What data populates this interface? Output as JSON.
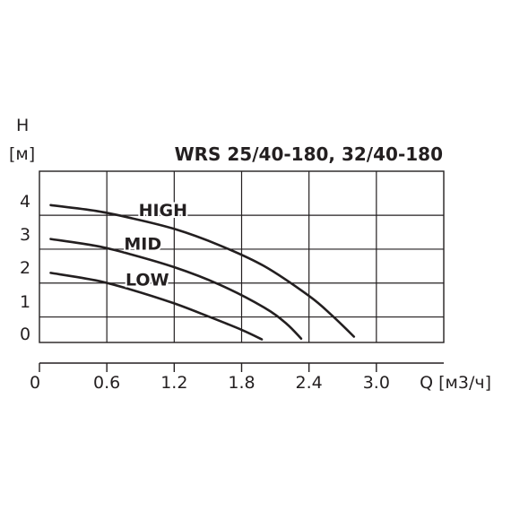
{
  "chart_data": {
    "type": "line",
    "title": "WRS 25/40-180, 32/40-180",
    "ylabel_symbol": "H",
    "ylabel_unit": "[м]",
    "xlabel": "Q [м3/ч]",
    "yticks": [
      "0",
      "1",
      "2",
      "3",
      "4"
    ],
    "xticks": [
      "0",
      "0.6",
      "1.2",
      "1.8",
      "2.4",
      "3.0"
    ],
    "xlim": [
      0,
      3.6
    ],
    "ylim": [
      -0.7,
      4.35
    ],
    "grid": true,
    "series": [
      {
        "name": "HIGH",
        "points": [
          [
            0.1,
            4.0
          ],
          [
            0.5,
            3.83
          ],
          [
            0.8,
            3.63
          ],
          [
            1.2,
            3.3
          ],
          [
            1.6,
            2.82
          ],
          [
            2.0,
            2.2
          ],
          [
            2.4,
            1.32
          ],
          [
            2.6,
            0.76
          ],
          [
            2.8,
            0.12
          ]
        ],
        "label_at": [
          1.1,
          3.68
        ]
      },
      {
        "name": "MID",
        "points": [
          [
            0.1,
            3.0
          ],
          [
            0.5,
            2.8
          ],
          [
            0.8,
            2.56
          ],
          [
            1.2,
            2.17
          ],
          [
            1.6,
            1.66
          ],
          [
            2.0,
            0.98
          ],
          [
            2.2,
            0.5
          ],
          [
            2.33,
            0.06
          ]
        ],
        "label_at": [
          0.92,
          2.68
        ]
      },
      {
        "name": "LOW",
        "points": [
          [
            0.1,
            2.0
          ],
          [
            0.5,
            1.78
          ],
          [
            0.8,
            1.52
          ],
          [
            1.2,
            1.1
          ],
          [
            1.5,
            0.72
          ],
          [
            1.8,
            0.32
          ],
          [
            1.98,
            0.04
          ]
        ],
        "label_at": [
          0.96,
          1.63
        ]
      }
    ]
  }
}
